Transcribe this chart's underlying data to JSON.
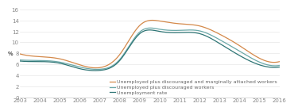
{
  "years": [
    2003,
    2004,
    2005,
    2006,
    2007,
    2008,
    2009,
    2010,
    2011,
    2012,
    2013,
    2014,
    2015,
    2016
  ],
  "unemployed_marginally": [
    7.9,
    7.4,
    7.0,
    5.9,
    5.4,
    7.8,
    13.1,
    13.9,
    13.4,
    13.0,
    11.5,
    9.4,
    7.1,
    6.5
  ],
  "unemployed_discouraged": [
    6.8,
    6.7,
    6.4,
    5.5,
    5.1,
    6.9,
    11.9,
    12.4,
    12.2,
    12.1,
    10.5,
    8.4,
    6.4,
    5.8
  ],
  "unemployment_rate": [
    6.6,
    6.5,
    6.2,
    5.2,
    4.9,
    6.7,
    11.6,
    12.0,
    11.8,
    11.6,
    9.8,
    7.6,
    5.9,
    5.5
  ],
  "color_marginally": "#d4894a",
  "color_discouraged": "#6ba8a8",
  "color_unemployment": "#2e7575",
  "ylim": [
    0,
    16
  ],
  "yticks": [
    0,
    2,
    4,
    6,
    8,
    10,
    12,
    14,
    16
  ],
  "ylabel": "%",
  "legend_labels": [
    "Unemployed plus discouraged and marginally attached workers",
    "Unemployed plus discouraged workers",
    "Unemployment rate"
  ],
  "background_color": "#ffffff",
  "tick_fontsize": 5.0,
  "legend_fontsize": 4.5,
  "line_width": 0.9
}
